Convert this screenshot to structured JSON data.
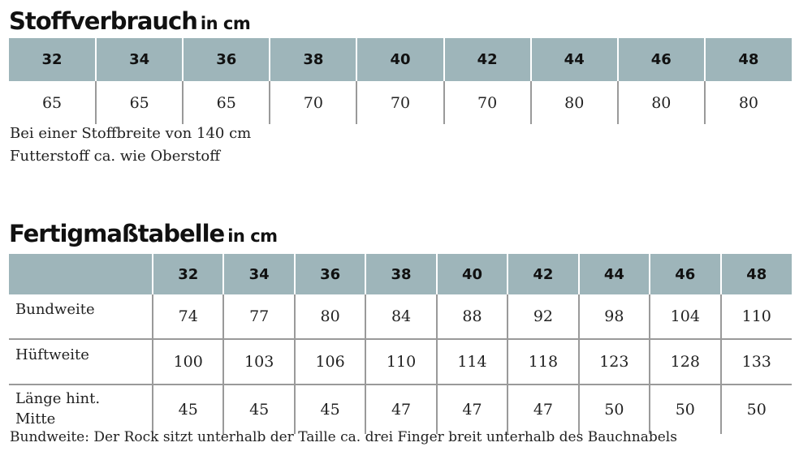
{
  "section1": {
    "title": "Stoffverbrauch",
    "unit": "in cm",
    "sizes": [
      "32",
      "34",
      "36",
      "38",
      "40",
      "42",
      "44",
      "46",
      "48"
    ],
    "values": [
      "65",
      "65",
      "65",
      "70",
      "70",
      "70",
      "80",
      "80",
      "80"
    ],
    "notes": [
      "Bei einer Stoffbreite von 140 cm",
      "Futterstoff ca. wie Oberstoff"
    ]
  },
  "section2": {
    "title": "Fertigmaßtabelle",
    "unit": "in cm",
    "sizes": [
      "32",
      "34",
      "36",
      "38",
      "40",
      "42",
      "44",
      "46",
      "48"
    ],
    "rows": [
      {
        "label": "Bundweite",
        "values": [
          "74",
          "77",
          "80",
          "84",
          "88",
          "92",
          "98",
          "104",
          "110"
        ]
      },
      {
        "label": "Hüftweite",
        "values": [
          "100",
          "103",
          "106",
          "110",
          "114",
          "118",
          "123",
          "128",
          "133"
        ]
      },
      {
        "label_lines": [
          "Länge hint.",
          "Mitte"
        ],
        "values": [
          "45",
          "45",
          "45",
          "47",
          "47",
          "47",
          "50",
          "50",
          "50"
        ]
      }
    ],
    "footnote": "Bundweite: Der Rock sitzt unterhalb der Taille ca. drei Finger breit unterhalb des Bauchnabels"
  },
  "colors": {
    "header_bg": "#9eb5ba",
    "grid": "#9a9a9a",
    "text": "#222222"
  }
}
